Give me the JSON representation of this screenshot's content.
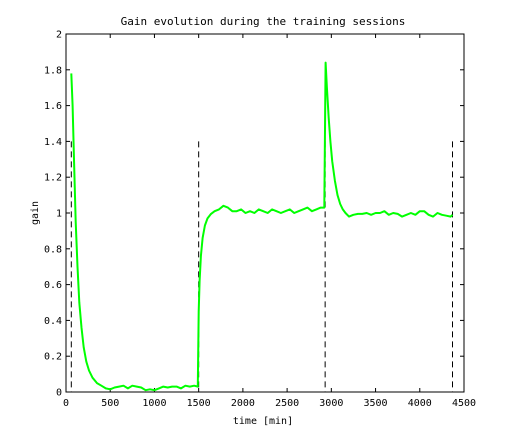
{
  "chart_data": {
    "type": "line",
    "title": "Gain evolution during the training sessions",
    "xlabel": "time [min]",
    "ylabel": "gain",
    "xlim": [
      0,
      4500
    ],
    "ylim": [
      0,
      2
    ],
    "xticks": [
      0,
      500,
      1000,
      1500,
      2000,
      2500,
      3000,
      3500,
      4000,
      4500
    ],
    "yticks": [
      0,
      0.2,
      0.4,
      0.6,
      0.8,
      1,
      1.2,
      1.4,
      1.6,
      1.8,
      2
    ],
    "xtick_labels": [
      "0",
      "500",
      "1000",
      "1500",
      "2000",
      "2500",
      "3000",
      "3500",
      "4000",
      "4500"
    ],
    "ytick_labels": [
      "0",
      "0.2",
      "0.4",
      "0.6",
      "0.8",
      "1",
      "1.2",
      "1.4",
      "1.6",
      "1.8",
      "2"
    ],
    "grid": false,
    "line_color": "#00ff00",
    "session_boundaries": {
      "x": [
        60,
        1500,
        2930,
        4370
      ],
      "y_top": 1.4,
      "style": "dashed",
      "color": "#000000"
    },
    "series": [
      {
        "x": [
          60,
          75,
          90,
          110,
          130,
          150,
          175,
          200,
          230,
          260,
          300,
          350,
          400,
          450,
          500,
          550,
          600,
          650,
          700,
          750,
          800,
          850,
          900,
          950,
          1000,
          1050,
          1100,
          1150,
          1200,
          1250,
          1300,
          1350,
          1400,
          1450,
          1490,
          1500,
          1510,
          1525,
          1545,
          1570,
          1600,
          1640,
          1680,
          1730,
          1780,
          1830,
          1880,
          1930,
          1980,
          2030,
          2080,
          2130,
          2180,
          2230,
          2280,
          2330,
          2380,
          2430,
          2480,
          2530,
          2580,
          2630,
          2680,
          2730,
          2780,
          2830,
          2880,
          2920,
          2935,
          2950,
          2970,
          2990,
          3010,
          3040,
          3070,
          3100,
          3130,
          3160,
          3200,
          3250,
          3300,
          3350,
          3400,
          3450,
          3500,
          3550,
          3600,
          3650,
          3700,
          3750,
          3800,
          3850,
          3900,
          3950,
          4000,
          4050,
          4100,
          4150,
          4200,
          4250,
          4300,
          4350,
          4370
        ],
        "y": [
          1.78,
          1.6,
          1.3,
          0.95,
          0.7,
          0.5,
          0.36,
          0.25,
          0.17,
          0.12,
          0.08,
          0.05,
          0.035,
          0.02,
          0.015,
          0.025,
          0.03,
          0.035,
          0.02,
          0.035,
          0.03,
          0.025,
          0.01,
          0.015,
          0.01,
          0.02,
          0.03,
          0.025,
          0.03,
          0.03,
          0.02,
          0.035,
          0.03,
          0.035,
          0.03,
          0.45,
          0.62,
          0.76,
          0.86,
          0.93,
          0.97,
          0.995,
          1.01,
          1.02,
          1.04,
          1.03,
          1.01,
          1.01,
          1.02,
          1.0,
          1.01,
          1.0,
          1.02,
          1.01,
          1.0,
          1.02,
          1.01,
          1.0,
          1.01,
          1.02,
          1.0,
          1.01,
          1.02,
          1.03,
          1.01,
          1.02,
          1.03,
          1.03,
          1.84,
          1.7,
          1.53,
          1.4,
          1.29,
          1.18,
          1.1,
          1.05,
          1.02,
          1.0,
          0.98,
          0.99,
          0.995,
          0.995,
          1.0,
          0.99,
          1.0,
          1.0,
          1.01,
          0.99,
          1.0,
          0.995,
          0.98,
          0.99,
          1.0,
          0.99,
          1.01,
          1.01,
          0.99,
          0.98,
          1.0,
          0.99,
          0.985,
          0.98,
          0.99
        ]
      }
    ]
  }
}
